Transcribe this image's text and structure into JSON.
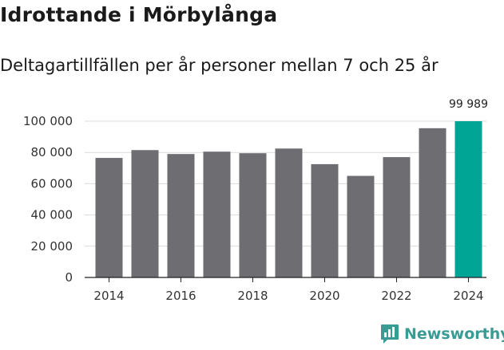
{
  "header": {
    "title": "Idrottande i Mörbylånga",
    "subtitle": "Deltagartillfällen per år personer mellan 7 och 25 år"
  },
  "branding": {
    "name": "Newsworthy",
    "color": "#3a9a94",
    "icon": "chart-speech-bubble-icon"
  },
  "colors": {
    "bar": "#6e6d72",
    "highlight": "#00a596",
    "grid": "#d9d9d9",
    "axis": "#222222"
  },
  "chart_data": {
    "type": "bar",
    "title": "Idrottande i Mörbylånga",
    "subtitle": "Deltagartillfällen per år personer mellan 7 och 25 år",
    "xlabel": "",
    "ylabel": "",
    "categories": [
      2014,
      2015,
      2016,
      2017,
      2018,
      2019,
      2020,
      2021,
      2022,
      2023,
      2024
    ],
    "values": [
      76500,
      81500,
      79000,
      80500,
      79500,
      82500,
      72500,
      65000,
      77000,
      95500,
      99989
    ],
    "highlight_index": 10,
    "highlight_label": "99 989",
    "ylim": [
      0,
      100000
    ],
    "yticks": [
      0,
      20000,
      40000,
      60000,
      80000,
      100000
    ],
    "ytick_labels": [
      "0",
      "20 000",
      "40 000",
      "60 000",
      "80 000",
      "100 000"
    ],
    "xtick_labels": [
      "2014",
      "2016",
      "2018",
      "2020",
      "2022",
      "2024"
    ],
    "xtick_years": [
      2014,
      2016,
      2018,
      2020,
      2022,
      2024
    ],
    "grid": true
  }
}
